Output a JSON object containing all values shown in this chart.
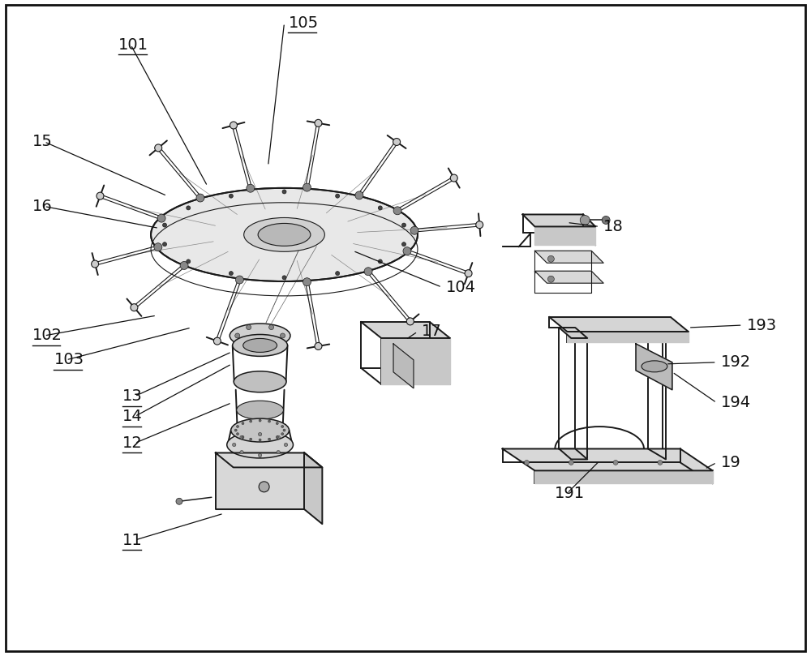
{
  "bg_color": "#ffffff",
  "line_color": "#1a1a1a",
  "figsize": [
    10.0,
    8.09
  ],
  "dpi": 100,
  "label_fontsize": 14
}
